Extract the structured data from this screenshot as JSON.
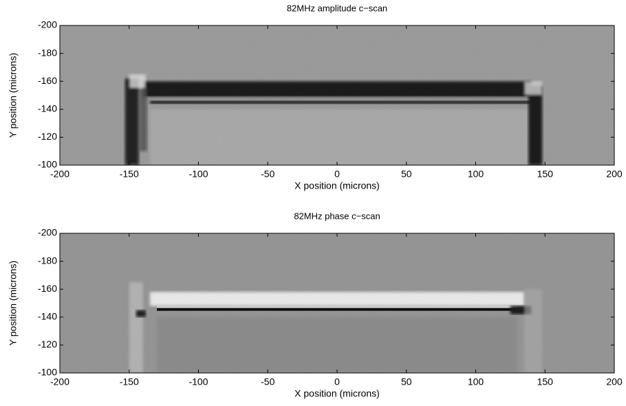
{
  "chart_data": [
    {
      "type": "image",
      "title": "82MHz amplitude c−scan",
      "xlabel": "X position (microns)",
      "ylabel": "Y position (microns)",
      "xlim": [
        -200,
        200
      ],
      "xticks": [
        -200,
        -150,
        -100,
        -50,
        0,
        50,
        100,
        150,
        200
      ],
      "ylim": [
        -200,
        -100
      ],
      "yticks": [
        -200,
        -180,
        -160,
        -140,
        -120,
        -100
      ],
      "y_reversed": true
    },
    {
      "type": "image",
      "title": "82MHz phase c−scan",
      "xlabel": "X position (microns)",
      "ylabel": "Y position (microns)",
      "xlim": [
        -200,
        200
      ],
      "xticks": [
        -200,
        -150,
        -100,
        -50,
        0,
        50,
        100,
        150,
        200
      ],
      "ylim": [
        -200,
        -100
      ],
      "yticks": [
        -200,
        -180,
        -160,
        -140,
        -120,
        -100
      ],
      "y_reversed": true
    }
  ]
}
